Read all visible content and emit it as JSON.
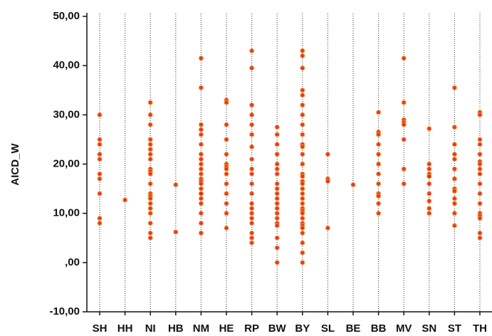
{
  "chart_data": {
    "type": "strip",
    "y_label": "AICD_W",
    "categories": [
      "SH",
      "HH",
      "NI",
      "HB",
      "NM",
      "HE",
      "RP",
      "BW",
      "BY",
      "SL",
      "BE",
      "BB",
      "MV",
      "SN",
      "ST",
      "TH"
    ],
    "values": [
      [
        30,
        25,
        24,
        22,
        21,
        18,
        17,
        14,
        9,
        8
      ],
      [
        12.7
      ],
      [
        32.5,
        30,
        28,
        25,
        24,
        23,
        22,
        21,
        19,
        18.5,
        18,
        16,
        14,
        13.5,
        13,
        12,
        11,
        10,
        8,
        6,
        5
      ],
      [
        15.8,
        6.2
      ],
      [
        41.5,
        35.5,
        28,
        27,
        26,
        24,
        22,
        21,
        20,
        19,
        18,
        17,
        16.5,
        16,
        15,
        14,
        14,
        13,
        12,
        10,
        8,
        6
      ],
      [
        33,
        32.5,
        28,
        25,
        22,
        20,
        19.5,
        19,
        18,
        16,
        14,
        12,
        10,
        7
      ],
      [
        43,
        39.5,
        32,
        30,
        28,
        26,
        23.5,
        21,
        19,
        18,
        16,
        14,
        12,
        11,
        10,
        9,
        8,
        6,
        5,
        4
      ],
      [
        27.5,
        26,
        24,
        22,
        20,
        19,
        18,
        16,
        15,
        14,
        13,
        12,
        11,
        10,
        9,
        8,
        7.5,
        5,
        3,
        0
      ],
      [
        43,
        42,
        39.5,
        35,
        34,
        32,
        30,
        28,
        26,
        24,
        23.5,
        22,
        20,
        18,
        17.5,
        16.5,
        16,
        15,
        14,
        13,
        12,
        11,
        10.5,
        10,
        9,
        8,
        7.5,
        7,
        6,
        4,
        2,
        0
      ],
      [
        22,
        17,
        16.5,
        7
      ],
      [
        15.8
      ],
      [
        30.5,
        26.5,
        26,
        24,
        22,
        20,
        18,
        16,
        14,
        13.5,
        12,
        10
      ],
      [
        41.5,
        32.5,
        29,
        28.5,
        28,
        25,
        19,
        16
      ],
      [
        27.2,
        20,
        19,
        18,
        17.5,
        17.5,
        16,
        14,
        12.5,
        11,
        10
      ],
      [
        35.5,
        27.5,
        24,
        22,
        21,
        19,
        17,
        15,
        14.5,
        13,
        12,
        10,
        7.5
      ],
      [
        30.5,
        30,
        25,
        24,
        22,
        20.5,
        20,
        19,
        18,
        16,
        14,
        12,
        10,
        9.5,
        9,
        6,
        5
      ]
    ],
    "color": "#e3261f",
    "edge_color": "#f5a03a",
    "ylim": [
      -10,
      50
    ],
    "yticks": [
      {
        "value": -10,
        "label": "-10,00"
      },
      {
        "value": 0,
        "label": ",00"
      },
      {
        "value": 10,
        "label": "10,00"
      },
      {
        "value": 20,
        "label": "20,00"
      },
      {
        "value": 30,
        "label": "30,00"
      },
      {
        "value": 40,
        "label": "40,00"
      },
      {
        "value": 50,
        "label": "50,00"
      }
    ]
  }
}
